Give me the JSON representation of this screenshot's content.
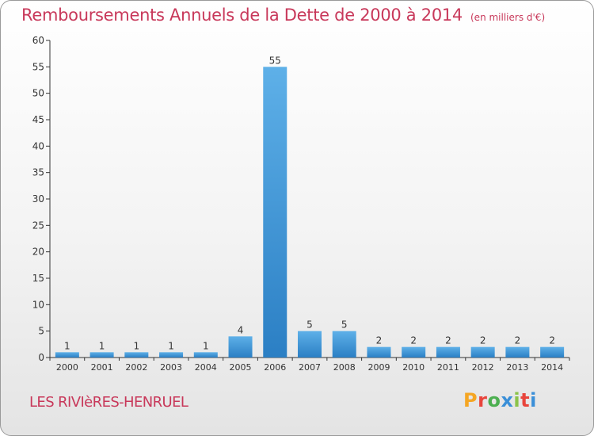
{
  "page": {
    "title": "Remboursements Annuels de la Dette de 2000 à 2014",
    "subtitle": "(en milliers d'€)",
    "commune": "LES RIVIèRES-HENRUEL",
    "logo_text": "Proxiti"
  },
  "colors": {
    "title": "#c8385a",
    "bar_light": "#5eb0e8",
    "bar_dark": "#2b7fc4",
    "axis": "#333333",
    "logo": [
      "#f5a623",
      "#e8453c",
      "#4caf50",
      "#3a8fd8",
      "#8bc34a",
      "#e8453c",
      "#3a8fd8"
    ]
  },
  "chart_data": {
    "type": "bar",
    "categories": [
      "2000",
      "2001",
      "2002",
      "2003",
      "2004",
      "2005",
      "2006",
      "2007",
      "2008",
      "2009",
      "2010",
      "2011",
      "2012",
      "2013",
      "2014"
    ],
    "values": [
      1,
      1,
      1,
      1,
      1,
      4,
      55,
      5,
      5,
      2,
      2,
      2,
      2,
      2,
      2
    ],
    "data_labels": [
      "1",
      "1",
      "1",
      "1",
      "1",
      "4",
      "55",
      "5",
      "5",
      "2",
      "2",
      "2",
      "2",
      "2",
      "2"
    ],
    "yticks": [
      "0",
      "5",
      "10",
      "15",
      "20",
      "25",
      "30",
      "35",
      "40",
      "45",
      "50",
      "55",
      "60"
    ],
    "ylim": [
      0,
      60
    ],
    "grid": false,
    "legend": "none"
  }
}
